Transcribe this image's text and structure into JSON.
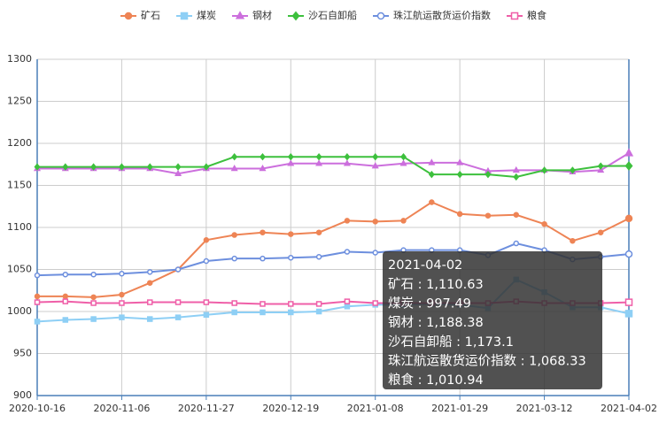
{
  "chart_data": {
    "type": "line",
    "categories": [
      "2020-10-16",
      null,
      null,
      "2020-11-06",
      null,
      null,
      "2020-11-27",
      null,
      null,
      "2020-12-19",
      null,
      null,
      "2021-01-08",
      null,
      null,
      "2021-01-29",
      null,
      null,
      "2021-03-12",
      null,
      null,
      "2021-04-02"
    ],
    "series": [
      {
        "name": "矿石",
        "color": "#ee8455",
        "marker": "circle",
        "values": [
          1018,
          1018,
          1017,
          1020,
          1034,
          1050,
          1085,
          1091,
          1094,
          1092,
          1094,
          1108,
          1107,
          1108,
          1130,
          1116,
          1114,
          1115,
          1104,
          1084,
          1094,
          1110.63
        ]
      },
      {
        "name": "煤炭",
        "color": "#8ecff5",
        "marker": "square",
        "values": [
          988,
          990,
          991,
          993,
          991,
          993,
          996,
          999,
          999,
          999,
          1000,
          1006,
          1008,
          1008,
          1009,
          1008,
          1004,
          1038,
          1023,
          1005,
          1005,
          997.49
        ]
      },
      {
        "name": "钢材",
        "color": "#cc6fdd",
        "marker": "triangle",
        "values": [
          1170,
          1170,
          1170,
          1170,
          1170,
          1164,
          1170,
          1170,
          1170,
          1176,
          1176,
          1176,
          1173,
          1176,
          1177,
          1177,
          1167,
          1168,
          1168,
          1166,
          1168,
          1188.38
        ]
      },
      {
        "name": "沙石自卸船",
        "color": "#3dc03d",
        "marker": "diamond",
        "values": [
          1172,
          1172,
          1172,
          1172,
          1172,
          1172,
          1172,
          1184,
          1184,
          1184,
          1184,
          1184,
          1184,
          1184,
          1163,
          1163,
          1163,
          1160,
          1168,
          1168,
          1173,
          1173.1
        ]
      },
      {
        "name": "珠江航运散货运价指数",
        "color": "#6d8fde",
        "marker": "empty-circle",
        "values": [
          1043,
          1044,
          1044,
          1045,
          1047,
          1050,
          1060,
          1063,
          1063,
          1064,
          1065,
          1071,
          1070,
          1073,
          1073,
          1073,
          1067,
          1081,
          1073,
          1062,
          1065,
          1068.33
        ]
      },
      {
        "name": "粮食",
        "color": "#ef5fa8",
        "marker": "empty-square",
        "values": [
          1011,
          1012,
          1010,
          1010,
          1011,
          1011,
          1011,
          1010,
          1009,
          1009,
          1009,
          1012,
          1010,
          1010,
          1010,
          1010,
          1010,
          1012,
          1010,
          1010,
          1010,
          1010.94
        ]
      }
    ],
    "ylim": [
      900,
      1300
    ],
    "yticks": [
      900,
      950,
      1000,
      1050,
      1100,
      1150,
      1200,
      1250,
      1300
    ],
    "grid": true,
    "legend": "top",
    "tooltip": {
      "title": "2021-04-02",
      "rows": [
        "矿石 : 1,110.63",
        "煤炭 : 997.49",
        "钢材 : 1,188.38",
        "沙石自卸船 : 1,173.1",
        "珠江航运散货运价指数 : 1,068.33",
        "粮食 : 1,010.94"
      ]
    }
  }
}
